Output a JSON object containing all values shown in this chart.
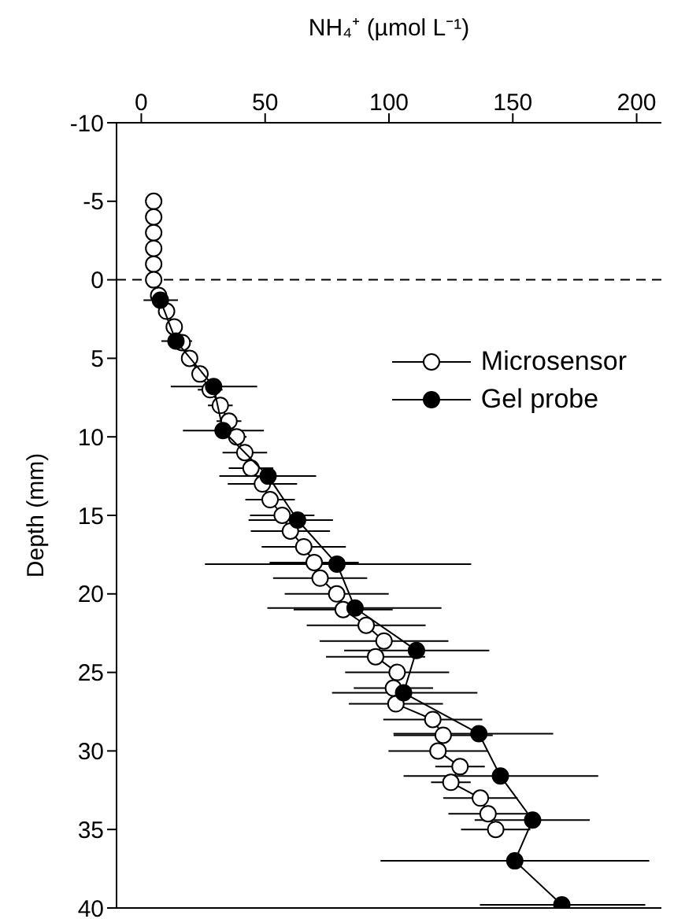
{
  "chart_data": {
    "type": "line",
    "xlabel": "NH₄⁺ (µmol L⁻¹)",
    "ylabel": "Depth (mm)",
    "xlim": [
      -10,
      210
    ],
    "xticks": [
      0,
      50,
      100,
      150,
      200
    ],
    "ylim": [
      40,
      -10
    ],
    "yticks": [
      -10,
      -5,
      0,
      5,
      10,
      15,
      20,
      25,
      30,
      35,
      40
    ],
    "marker": "circle",
    "legend": "top right",
    "ref_lines": [
      {
        "axis": "y",
        "value": 0,
        "line_style": "dashed",
        "color": "#000000"
      }
    ],
    "series": [
      {
        "name": "Microsensor",
        "color": "#000000",
        "colors": [
          "#ffffff",
          "#ffffff",
          "#ffffff",
          "#ffffff",
          "#ffffff",
          "#ffffff",
          "#ffffff",
          "#ffffff",
          "#ffffff",
          "#ffffff",
          "#ffffff",
          "#ffffff",
          "#ffffff",
          "#ffffff",
          "#ffffff",
          "#ffffff",
          "#ffffff",
          "#ffffff",
          "#ffffff",
          "#ffffff",
          "#ffffff",
          "#ffffff",
          "#ffffff",
          "#ffffff",
          "#ffffff",
          "#ffffff",
          "#ffffff",
          "#ffffff",
          "#ffffff",
          "#ffffff",
          "#ffffff",
          "#ffffff",
          "#ffffff",
          "#ffffff",
          "#ffffff",
          "#ffffff",
          "#ffffff",
          "#ffffff",
          "#ffffff",
          "#ffffff",
          "#ffffff"
        ],
        "x": [
          5,
          5,
          5,
          5,
          5,
          5,
          7,
          10.2,
          13.3,
          16.5,
          19.5,
          23.7,
          27.8,
          31.9,
          35.4,
          38.5,
          41.8,
          44.3,
          48.9,
          52,
          56.9,
          60.2,
          65.6,
          69.8,
          72.2,
          78.9,
          81.5,
          90.8,
          98,
          94.6,
          103.3,
          101.8,
          102.8,
          117.7,
          121.9,
          119.8,
          128.7,
          125,
          136.9,
          140,
          143.1
        ],
        "values": [
          -5,
          -4,
          -3,
          -2,
          -1,
          0,
          1,
          2,
          3,
          4,
          5,
          6,
          7,
          8,
          9,
          10,
          11,
          12,
          13,
          14,
          15,
          16,
          17,
          18,
          19,
          20,
          21,
          22,
          23,
          24,
          25,
          26,
          27,
          28,
          29,
          30,
          31,
          32,
          33,
          34,
          35
        ],
        "xerrors": [
          null,
          null,
          null,
          null,
          null,
          null,
          null,
          null,
          null,
          null,
          null,
          3,
          5,
          5,
          5,
          4,
          9,
          9,
          14,
          10,
          13,
          16,
          17,
          18,
          19,
          21,
          20,
          24,
          26,
          20,
          21,
          16,
          19,
          20,
          20,
          20,
          10,
          8,
          15,
          16,
          14
        ]
      },
      {
        "name": "Gel probe",
        "color": "#000000",
        "x": [
          7.7,
          14,
          29.2,
          33,
          51.2,
          63.1,
          79,
          86.3,
          111.1,
          105.9,
          136.3,
          145,
          158,
          150.8,
          169.8
        ],
        "values": [
          1.3,
          3.9,
          6.8,
          9.6,
          12.5,
          15.3,
          18.1,
          20.9,
          23.6,
          26.3,
          28.9,
          31.6,
          34.4,
          37,
          39.8
        ],
        "xerrors": [
          [
            0.9,
            14.8
          ],
          [
            8.1,
            20.5
          ],
          [
            11.9,
            46.8
          ],
          [
            16.8,
            49.5
          ],
          [
            31.5,
            70.6
          ],
          [
            43.3,
            77.4
          ],
          [
            25.7,
            133.2
          ],
          [
            50.9,
            121.2
          ],
          [
            81.9,
            140.5
          ],
          [
            77,
            135.7
          ],
          [
            101.8,
            166.3
          ],
          [
            105.9,
            184.5
          ],
          [
            134.6,
            181.1
          ],
          [
            96.6,
            205.1
          ],
          [
            136.7,
            203.5
          ]
        ]
      }
    ]
  }
}
